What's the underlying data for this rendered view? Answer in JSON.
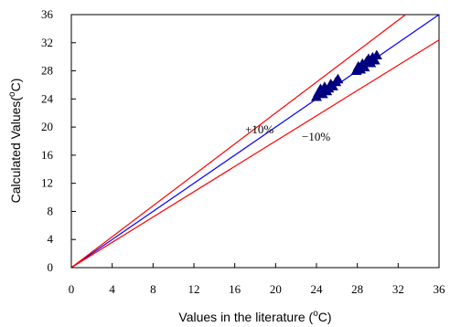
{
  "chart_data": {
    "type": "scatter",
    "title": "",
    "xlabel": "Values in the literature (",
    "xlabel_unit": "C)",
    "ylabel": "Calculated Values(",
    "ylabel_unit": "C)",
    "degree_symbol": "o",
    "xlim": [
      0,
      36
    ],
    "ylim": [
      0,
      36
    ],
    "xticks": [
      "0",
      "4",
      "8",
      "12",
      "16",
      "20",
      "24",
      "28",
      "32",
      "36"
    ],
    "yticks": [
      "0",
      "4",
      "8",
      "12",
      "16",
      "20",
      "24",
      "28",
      "32",
      "36"
    ],
    "grid": false,
    "legend": "none",
    "marker": "triangle",
    "marker_color": "#000080",
    "points": [
      {
        "x": 24.0,
        "y": 24.3
      },
      {
        "x": 24.2,
        "y": 24.9
      },
      {
        "x": 24.4,
        "y": 25.4
      },
      {
        "x": 24.6,
        "y": 24.7
      },
      {
        "x": 24.8,
        "y": 25.7
      },
      {
        "x": 25.0,
        "y": 25.1
      },
      {
        "x": 25.2,
        "y": 25.5
      },
      {
        "x": 25.4,
        "y": 26.1
      },
      {
        "x": 25.6,
        "y": 25.8
      },
      {
        "x": 25.9,
        "y": 26.4
      },
      {
        "x": 26.1,
        "y": 26.8
      },
      {
        "x": 27.9,
        "y": 28.0
      },
      {
        "x": 28.1,
        "y": 28.6
      },
      {
        "x": 28.3,
        "y": 28.2
      },
      {
        "x": 28.5,
        "y": 29.0
      },
      {
        "x": 28.7,
        "y": 28.5
      },
      {
        "x": 28.9,
        "y": 29.3
      },
      {
        "x": 29.1,
        "y": 29.7
      },
      {
        "x": 29.3,
        "y": 29.1
      },
      {
        "x": 29.5,
        "y": 29.9
      },
      {
        "x": 29.7,
        "y": 29.5
      },
      {
        "x": 29.9,
        "y": 30.2
      }
    ],
    "lines": [
      {
        "label": "",
        "slope": 1.0,
        "color": "#0000ff"
      },
      {
        "label": "+10%",
        "slope": 1.1,
        "color": "#ff0000"
      },
      {
        "label": "−10%",
        "slope": 0.9,
        "color": "#ff0000"
      }
    ]
  }
}
